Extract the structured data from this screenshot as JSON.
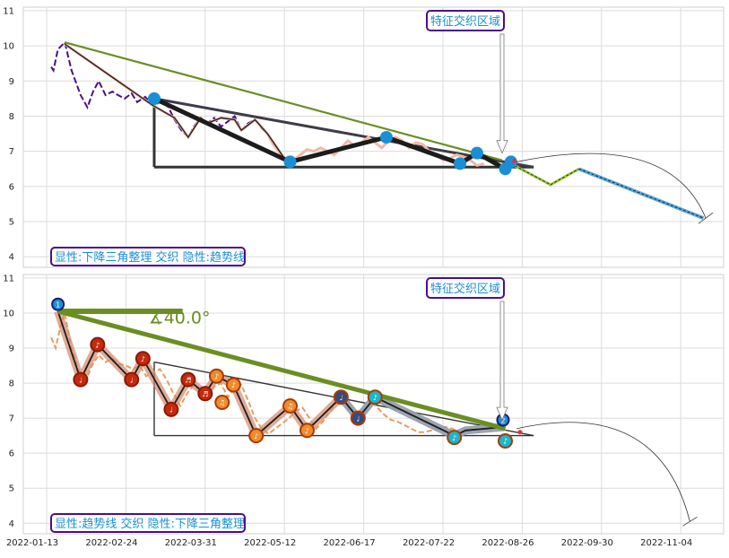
{
  "chart_data": [
    {
      "type": "line",
      "panel": "top",
      "ylim": [
        3.7,
        11.1
      ],
      "yticks": [
        4,
        5,
        6,
        7,
        8,
        9,
        10,
        11
      ],
      "xticks": [
        "2022-01-13",
        "2022-02-24",
        "2022-03-31",
        "2022-05-12",
        "2022-06-17",
        "2022-07-22",
        "2022-08-26",
        "2022-09-30",
        "2022-11-04"
      ],
      "grid": true,
      "feature_label": "特征交织区域",
      "annotation": "显性:下降三角整理 交织 隐性:趋势线",
      "price_series": [
        [
          0.4,
          9.4
        ],
        [
          0.6,
          9.3
        ],
        [
          1.0,
          9.9
        ],
        [
          1.6,
          10.1
        ],
        [
          2.2,
          9.3
        ],
        [
          3.0,
          8.6
        ],
        [
          3.6,
          8.25
        ],
        [
          4.1,
          8.7
        ],
        [
          4.6,
          9.0
        ],
        [
          5.2,
          8.6
        ],
        [
          5.8,
          8.7
        ],
        [
          6.3,
          8.6
        ],
        [
          6.9,
          8.5
        ],
        [
          7.5,
          8.65
        ],
        [
          8.0,
          8.4
        ],
        [
          8.7,
          8.55
        ],
        [
          9.4,
          8.3
        ],
        [
          10.0,
          8.4
        ],
        [
          10.6,
          8.35
        ],
        [
          11.3,
          7.9
        ],
        [
          11.9,
          7.6
        ],
        [
          12.5,
          7.4
        ],
        [
          13.0,
          7.7
        ],
        [
          13.6,
          7.95
        ],
        [
          14.2,
          7.8
        ],
        [
          14.8,
          7.95
        ],
        [
          15.4,
          7.7
        ],
        [
          16.0,
          7.85
        ],
        [
          16.6,
          8.0
        ],
        [
          17.2,
          7.6
        ],
        [
          17.8,
          7.8
        ],
        [
          18.4,
          7.9
        ],
        [
          19.0,
          7.65
        ],
        [
          19.5,
          7.5
        ],
        [
          20.0,
          7.2
        ],
        [
          20.6,
          6.95
        ],
        [
          21.2,
          6.75
        ],
        [
          21.8,
          6.75
        ],
        [
          22.4,
          6.9
        ],
        [
          23.0,
          7.05
        ],
        [
          23.6,
          7.0
        ],
        [
          24.2,
          7.1
        ],
        [
          24.8,
          7.0
        ],
        [
          25.4,
          6.9
        ],
        [
          26.0,
          7.1
        ],
        [
          26.6,
          7.3
        ],
        [
          27.2,
          7.15
        ],
        [
          27.8,
          7.25
        ],
        [
          28.4,
          7.4
        ],
        [
          29.0,
          7.25
        ],
        [
          29.6,
          7.1
        ],
        [
          30.2,
          7.3
        ],
        [
          30.8,
          7.4
        ],
        [
          31.4,
          7.3
        ],
        [
          32.0,
          7.1
        ],
        [
          32.6,
          7.25
        ],
        [
          33.2,
          7.2
        ],
        [
          33.8,
          7.0
        ],
        [
          34.4,
          6.9
        ],
        [
          35.0,
          6.75
        ],
        [
          35.6,
          6.8
        ],
        [
          36.2,
          6.9
        ],
        [
          36.8,
          6.85
        ],
        [
          37.4,
          6.75
        ],
        [
          38.0,
          6.6
        ],
        [
          38.6,
          6.65
        ]
      ],
      "pivot_points": [
        [
          1.6,
          10.05
        ],
        [
          9.4,
          8.3
        ],
        [
          11.3,
          7.95
        ],
        [
          12.5,
          7.4
        ],
        [
          13.6,
          7.95
        ],
        [
          14.2,
          7.8
        ],
        [
          15.4,
          7.95
        ],
        [
          16.6,
          7.9
        ],
        [
          17.2,
          7.6
        ],
        [
          18.4,
          7.9
        ],
        [
          19.5,
          7.5
        ],
        [
          21.2,
          6.7
        ]
      ],
      "zigzag": [
        [
          9.5,
          8.5
        ],
        [
          21.5,
          6.7
        ],
        [
          30.0,
          7.4
        ],
        [
          36.5,
          6.65
        ],
        [
          38.0,
          6.95
        ],
        [
          40.5,
          6.5
        ]
      ],
      "triangle_upper": [
        [
          9.5,
          8.5
        ],
        [
          43.0,
          6.55
        ]
      ],
      "triangle_lower": [
        [
          9.5,
          6.55
        ],
        [
          43.0,
          6.55
        ]
      ],
      "trendline": [
        [
          1.6,
          10.1
        ],
        [
          40.2,
          6.75
        ]
      ],
      "markers": [
        [
          9.5,
          8.5
        ],
        [
          21.5,
          6.7
        ],
        [
          30.0,
          7.4
        ],
        [
          36.5,
          6.65
        ],
        [
          38.0,
          6.95
        ],
        [
          40.5,
          6.5
        ],
        [
          41.0,
          6.7
        ]
      ],
      "forecast_green": [
        [
          41.0,
          6.65
        ],
        [
          44.5,
          6.05
        ],
        [
          47.0,
          6.5
        ]
      ],
      "forecast_blue": [
        [
          47.0,
          6.5
        ],
        [
          58.0,
          5.1
        ]
      ]
    },
    {
      "type": "line",
      "panel": "bottom",
      "ylim": [
        3.7,
        11.1
      ],
      "yticks": [
        4,
        5,
        6,
        7,
        8,
        9,
        10,
        11
      ],
      "xticks": [
        "2022-01-13",
        "2022-02-24",
        "2022-03-31",
        "2022-05-12",
        "2022-06-17",
        "2022-07-22",
        "2022-08-26",
        "2022-09-30",
        "2022-11-04"
      ],
      "grid": true,
      "feature_label": "特征交织区域",
      "annotation": "显性:趋势线 交织 隐性:下降三角整理",
      "angle_label": "∡40.0°",
      "price_series": [
        [
          0.4,
          9.3
        ],
        [
          0.8,
          9.0
        ],
        [
          1.2,
          9.6
        ],
        [
          1.6,
          10.0
        ],
        [
          2.2,
          9.0
        ],
        [
          2.8,
          8.4
        ],
        [
          3.4,
          8.0
        ],
        [
          4.0,
          8.5
        ],
        [
          4.6,
          8.8
        ],
        [
          5.2,
          8.6
        ],
        [
          5.8,
          8.7
        ],
        [
          6.4,
          8.55
        ],
        [
          7.0,
          8.5
        ],
        [
          7.6,
          8.4
        ],
        [
          8.2,
          8.5
        ],
        [
          8.8,
          8.2
        ],
        [
          9.4,
          8.3
        ],
        [
          10.0,
          8.4
        ],
        [
          10.6,
          8.1
        ],
        [
          11.2,
          7.7
        ],
        [
          11.8,
          7.35
        ],
        [
          12.4,
          7.7
        ],
        [
          13.0,
          7.95
        ],
        [
          13.6,
          7.75
        ],
        [
          14.2,
          7.6
        ],
        [
          14.8,
          7.9
        ],
        [
          15.4,
          8.0
        ],
        [
          16.0,
          7.6
        ],
        [
          16.6,
          7.85
        ],
        [
          17.2,
          7.95
        ],
        [
          17.8,
          7.5
        ],
        [
          18.4,
          7.0
        ],
        [
          19.0,
          6.7
        ],
        [
          19.6,
          6.55
        ],
        [
          20.2,
          6.7
        ],
        [
          20.8,
          6.85
        ],
        [
          21.4,
          7.0
        ],
        [
          22.0,
          7.2
        ],
        [
          22.6,
          7.3
        ],
        [
          23.2,
          7.0
        ],
        [
          23.8,
          6.7
        ],
        [
          24.4,
          6.9
        ],
        [
          25.0,
          7.2
        ],
        [
          25.6,
          7.45
        ],
        [
          26.2,
          7.5
        ],
        [
          26.8,
          7.2
        ],
        [
          27.4,
          7.0
        ],
        [
          28.0,
          7.35
        ],
        [
          28.6,
          7.5
        ],
        [
          29.2,
          7.3
        ],
        [
          29.8,
          7.1
        ],
        [
          30.4,
          6.95
        ],
        [
          31.0,
          6.9
        ],
        [
          31.6,
          6.8
        ],
        [
          32.2,
          6.7
        ],
        [
          32.8,
          6.6
        ],
        [
          33.4,
          6.6
        ],
        [
          34.0,
          6.65
        ],
        [
          34.6,
          6.7
        ],
        [
          35.2,
          6.75
        ],
        [
          35.8,
          6.7
        ],
        [
          36.4,
          6.6
        ]
      ],
      "trendline": [
        [
          1.0,
          10.05
        ],
        [
          40.5,
          6.7
        ]
      ],
      "trendline_base": [
        [
          1.0,
          10.05
        ],
        [
          12.0,
          10.05
        ]
      ],
      "wave_line": [
        [
          1.0,
          10.05
        ],
        [
          3.0,
          8.1
        ],
        [
          4.5,
          9.1
        ],
        [
          7.5,
          8.1
        ],
        [
          8.5,
          8.7
        ],
        [
          11.0,
          7.25
        ],
        [
          12.5,
          8.1
        ],
        [
          14.0,
          7.7
        ],
        [
          15.0,
          8.2
        ],
        [
          16.5,
          7.95
        ],
        [
          18.5,
          6.5
        ],
        [
          21.5,
          7.35
        ],
        [
          23.0,
          6.65
        ],
        [
          26.0,
          7.6
        ],
        [
          27.5,
          7.0
        ],
        [
          29.0,
          7.6
        ],
        [
          36.0,
          6.5
        ],
        [
          37.0,
          6.65
        ],
        [
          40.5,
          6.75
        ]
      ],
      "wave_points": [
        [
          1.0,
          10.25,
          "1",
          "#1b8fd6",
          "#1a1a6e"
        ],
        [
          3.0,
          8.1,
          "♩",
          "#c62a0c",
          "#8b1a06"
        ],
        [
          4.5,
          9.1,
          "♪",
          "#c62a0c",
          "#8b1a06"
        ],
        [
          7.5,
          8.1,
          "♩",
          "#c62a0c",
          "#8b1a06"
        ],
        [
          8.5,
          8.7,
          "♪",
          "#c62a0c",
          "#8b1a06"
        ],
        [
          11.0,
          7.25,
          "♩",
          "#c62a0c",
          "#8b1a06"
        ],
        [
          12.5,
          8.1,
          "♬",
          "#c62a0c",
          "#8b1a06"
        ],
        [
          14.0,
          7.7,
          "♬",
          "#c62a0c",
          "#8b1a06"
        ],
        [
          15.0,
          8.2,
          "♪",
          "#f08b2b",
          "#a83a07"
        ],
        [
          16.5,
          7.95,
          "♪",
          "#f08b2b",
          "#a83a07"
        ],
        [
          15.5,
          7.45,
          "♫",
          "#f08b2b",
          "#a83a07"
        ],
        [
          18.5,
          6.5,
          "♪",
          "#f08b2b",
          "#a83a07"
        ],
        [
          21.5,
          7.35,
          "♫",
          "#f08b2b",
          "#a83a07"
        ],
        [
          23.0,
          6.65,
          "♪",
          "#f08b2b",
          "#a83a07"
        ],
        [
          26.0,
          7.6,
          "♩",
          "#3a4b7a",
          "#a83a07"
        ],
        [
          27.5,
          7.0,
          "♩",
          "#3a4b7a",
          "#a83a07"
        ],
        [
          29.0,
          7.6,
          "♪",
          "#1ab8c9",
          "#a83a07"
        ],
        [
          36.0,
          6.45,
          "♪",
          "#1ab8c9",
          "#a83a07"
        ],
        [
          40.3,
          6.95,
          "2",
          "#1b8fd6",
          "#1a1a6e"
        ],
        [
          40.5,
          6.35,
          "♪",
          "#1ab8c9",
          "#a83a07"
        ]
      ],
      "triangle_upper": [
        [
          9.5,
          8.6
        ],
        [
          43.0,
          6.5
        ]
      ],
      "triangle_lower": [
        [
          9.5,
          6.5
        ],
        [
          43.0,
          6.5
        ]
      ]
    }
  ]
}
